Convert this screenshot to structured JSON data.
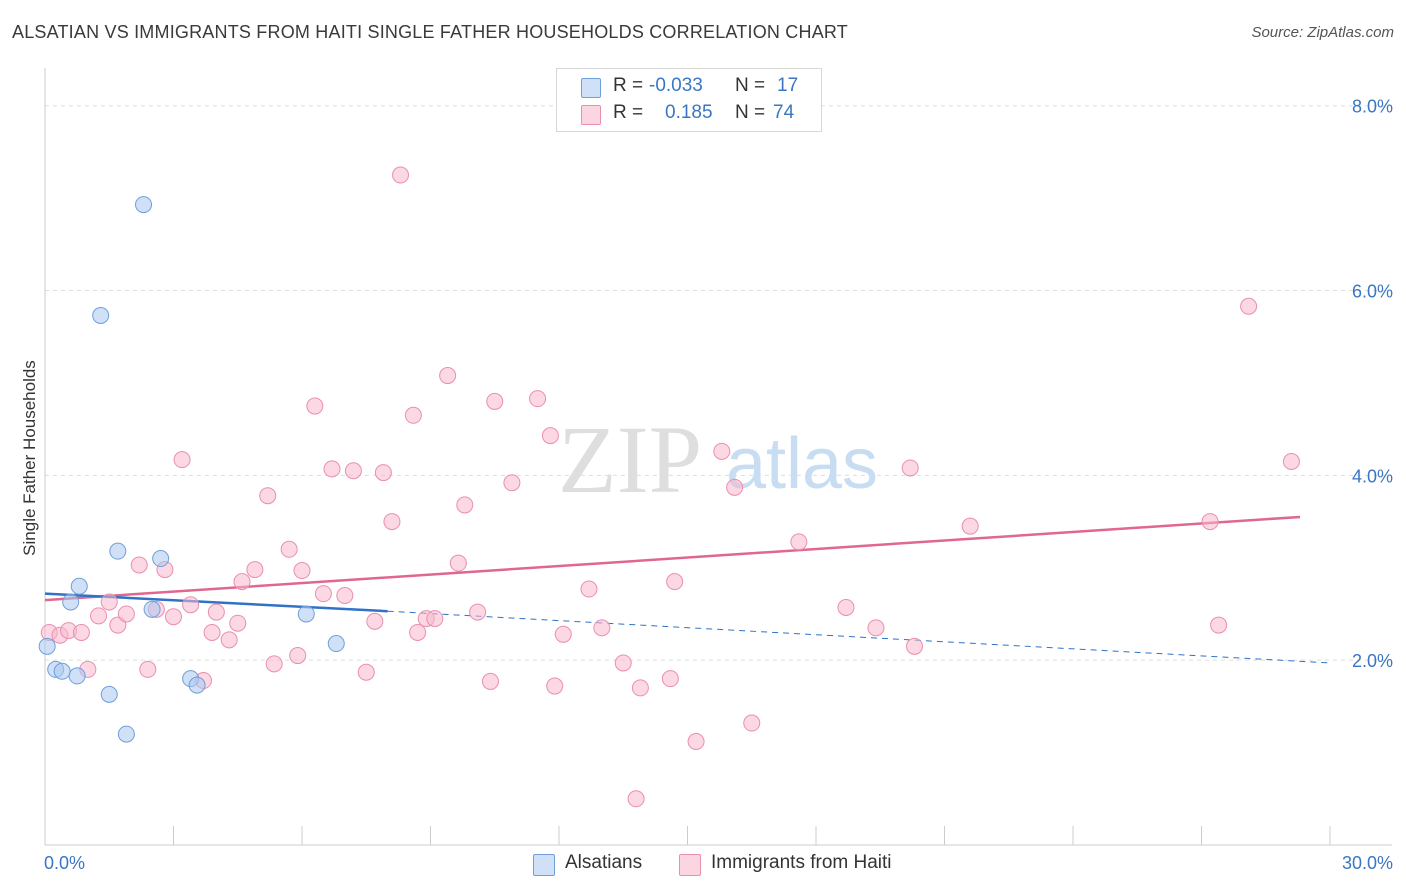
{
  "title": "ALSATIAN VS IMMIGRANTS FROM HAITI SINGLE FATHER HOUSEHOLDS CORRELATION CHART",
  "source": "Source: ZipAtlas.com",
  "watermark": {
    "zip": "ZIP",
    "atlas": "atlas"
  },
  "legend": {
    "rows": [
      {
        "r_label": "R =",
        "r_value": "-0.033",
        "n_label": "N =",
        "n_value": "17",
        "color": "#a9c8f0"
      },
      {
        "r_label": "R =",
        "r_value": "0.185",
        "n_label": "N =",
        "n_value": "74",
        "color": "#f7b8cc"
      }
    ]
  },
  "bottom_legend": [
    {
      "label": "Alsatians",
      "color": "#a9c8f0"
    },
    {
      "label": "Immigrants from Haiti",
      "color": "#f7b8cc"
    }
  ],
  "chart_data": {
    "type": "scatter",
    "title": "ALSATIAN VS IMMIGRANTS FROM HAITI SINGLE FATHER HOUSEHOLDS CORRELATION CHART",
    "xlabel": "",
    "ylabel": "Single Father Households",
    "xlim": [
      0,
      30
    ],
    "ylim": [
      0,
      8.3
    ],
    "x_tick_labels": [
      "0.0%",
      "30.0%"
    ],
    "y_ticks": [
      2,
      4,
      6,
      8
    ],
    "y_tick_labels": [
      "2.0%",
      "4.0%",
      "6.0%",
      "8.0%"
    ],
    "grid": true,
    "legend_position": "top-center",
    "series": [
      {
        "name": "Alsatians",
        "color": "#a9c8f0",
        "stroke": "#6f9fd8",
        "line_color": "#2f72c8",
        "trend": {
          "x_start": 0,
          "y_start": 2.72,
          "x_solid_end": 8.0,
          "y_solid_end": 2.53,
          "x_end": 30,
          "y_end": 1.97
        },
        "points": [
          [
            0.05,
            2.15
          ],
          [
            0.25,
            1.9
          ],
          [
            0.4,
            1.88
          ],
          [
            0.6,
            2.63
          ],
          [
            0.75,
            1.83
          ],
          [
            0.8,
            2.8
          ],
          [
            1.5,
            1.63
          ],
          [
            1.7,
            3.18
          ],
          [
            1.9,
            1.2
          ],
          [
            2.3,
            6.93
          ],
          [
            1.3,
            5.73
          ],
          [
            2.5,
            2.55
          ],
          [
            2.7,
            3.1
          ],
          [
            3.4,
            1.8
          ],
          [
            3.55,
            1.73
          ],
          [
            6.1,
            2.5
          ],
          [
            6.8,
            2.18
          ]
        ]
      },
      {
        "name": "Immigrants from Haiti",
        "color": "#f7b8cc",
        "stroke": "#ea8fad",
        "line_color": "#e0678f",
        "trend": {
          "x_start": 0,
          "y_start": 2.65,
          "x_end": 29.3,
          "y_end": 3.55
        },
        "points": [
          [
            0.1,
            2.3
          ],
          [
            0.35,
            2.27
          ],
          [
            0.55,
            2.32
          ],
          [
            0.85,
            2.3
          ],
          [
            1.0,
            1.9
          ],
          [
            1.25,
            2.48
          ],
          [
            1.5,
            2.63
          ],
          [
            1.7,
            2.38
          ],
          [
            1.9,
            2.5
          ],
          [
            2.2,
            3.03
          ],
          [
            2.4,
            1.9
          ],
          [
            2.6,
            2.55
          ],
          [
            2.8,
            2.98
          ],
          [
            3.0,
            2.47
          ],
          [
            3.2,
            4.17
          ],
          [
            3.4,
            2.6
          ],
          [
            3.7,
            1.78
          ],
          [
            3.9,
            2.3
          ],
          [
            4.0,
            2.52
          ],
          [
            4.3,
            2.22
          ],
          [
            4.5,
            2.4
          ],
          [
            4.6,
            2.85
          ],
          [
            4.9,
            2.98
          ],
          [
            5.2,
            3.78
          ],
          [
            5.35,
            1.96
          ],
          [
            5.7,
            3.2
          ],
          [
            5.9,
            2.05
          ],
          [
            6.0,
            2.97
          ],
          [
            6.3,
            4.75
          ],
          [
            6.5,
            2.72
          ],
          [
            6.7,
            4.07
          ],
          [
            7.0,
            2.7
          ],
          [
            7.2,
            4.05
          ],
          [
            7.5,
            1.87
          ],
          [
            7.7,
            2.42
          ],
          [
            7.9,
            4.03
          ],
          [
            8.1,
            3.5
          ],
          [
            8.3,
            7.25
          ],
          [
            8.6,
            4.65
          ],
          [
            8.7,
            2.3
          ],
          [
            8.9,
            2.45
          ],
          [
            9.1,
            2.45
          ],
          [
            9.4,
            5.08
          ],
          [
            9.65,
            3.05
          ],
          [
            9.8,
            3.68
          ],
          [
            10.1,
            2.52
          ],
          [
            10.4,
            1.77
          ],
          [
            10.5,
            4.8
          ],
          [
            10.9,
            3.92
          ],
          [
            11.5,
            4.83
          ],
          [
            11.8,
            4.43
          ],
          [
            11.9,
            1.72
          ],
          [
            12.1,
            2.28
          ],
          [
            12.7,
            2.77
          ],
          [
            13.0,
            2.35
          ],
          [
            13.5,
            1.97
          ],
          [
            13.8,
            0.5
          ],
          [
            13.9,
            1.7
          ],
          [
            14.6,
            1.8
          ],
          [
            14.7,
            2.85
          ],
          [
            15.2,
            1.12
          ],
          [
            15.8,
            4.26
          ],
          [
            16.1,
            3.87
          ],
          [
            16.5,
            1.32
          ],
          [
            17.6,
            3.28
          ],
          [
            18.7,
            2.57
          ],
          [
            19.4,
            2.35
          ],
          [
            20.2,
            4.08
          ],
          [
            20.3,
            2.15
          ],
          [
            21.6,
            3.45
          ],
          [
            27.2,
            3.5
          ],
          [
            27.4,
            2.38
          ],
          [
            28.1,
            5.83
          ],
          [
            29.1,
            4.15
          ]
        ]
      }
    ]
  }
}
